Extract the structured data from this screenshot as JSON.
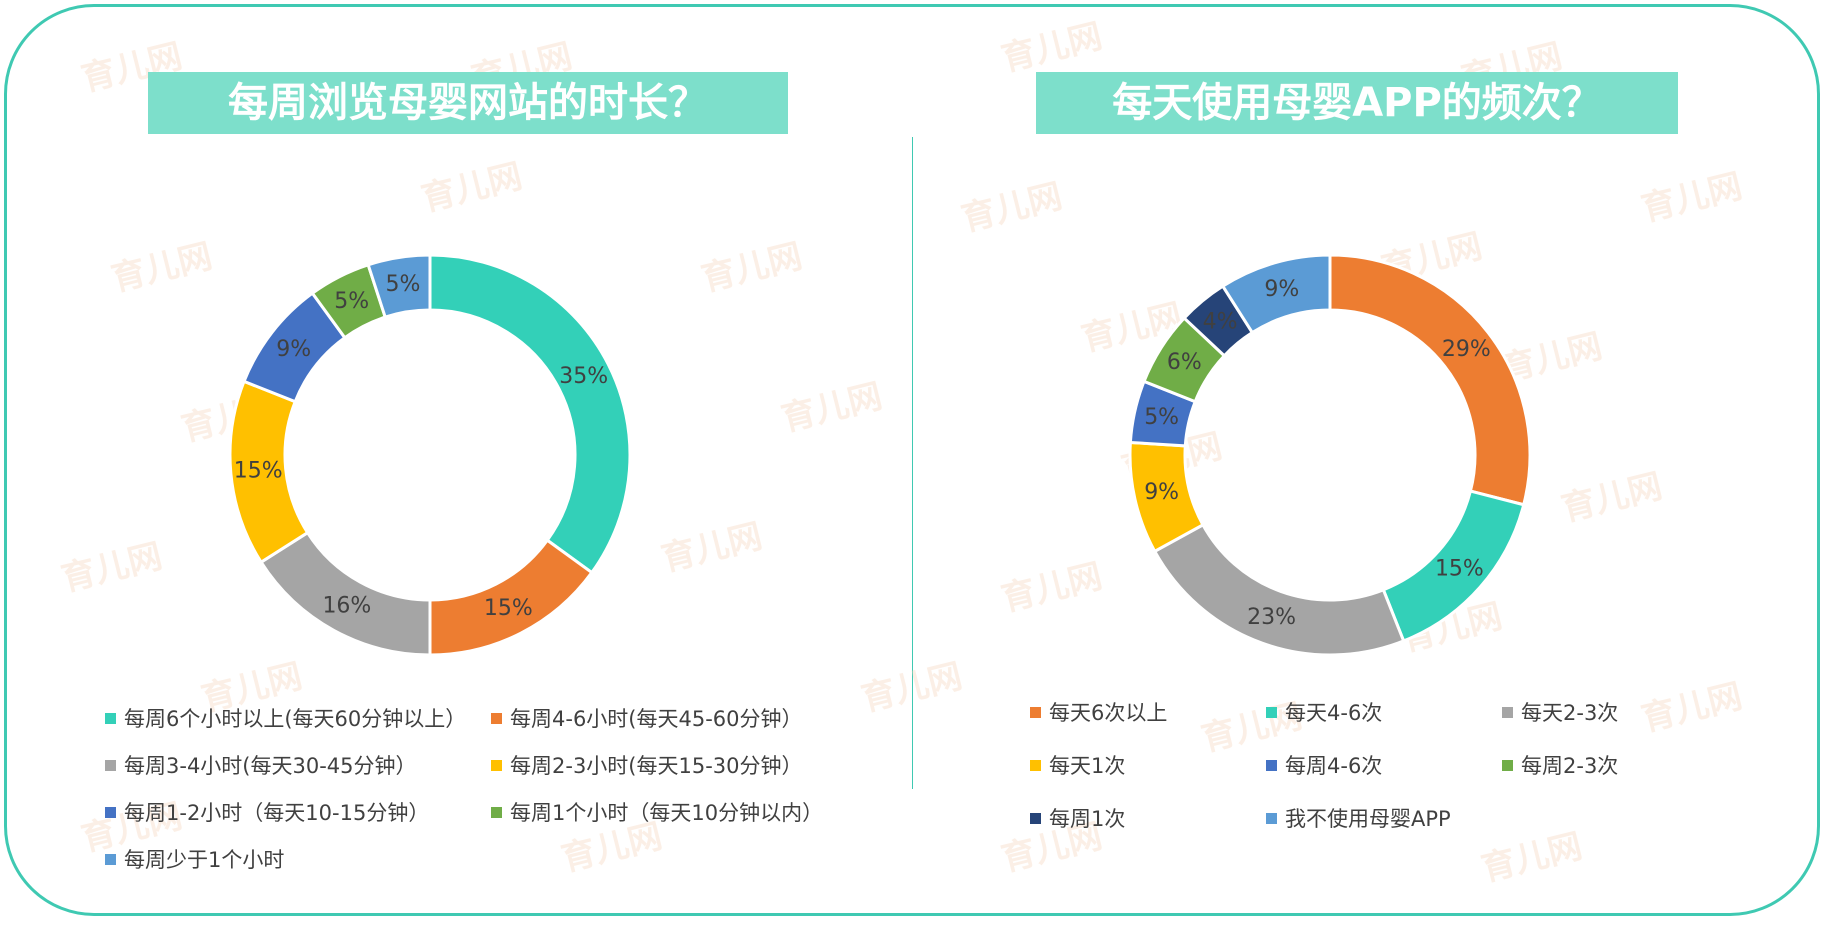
{
  "charts": [
    {
      "title": "每周浏览母婴网站的时长？",
      "chart_data": {
        "type": "pie",
        "title": "每周浏览母婴网站的时长？",
        "donut": true,
        "legend_position": "bottom",
        "series": [
          {
            "name": "每周6个小时以上(每天60分钟以上）",
            "value": 35,
            "label": "35%",
            "color": "#33d0b8"
          },
          {
            "name": "每周4-6小时(每天45-60分钟）",
            "value": 15,
            "label": "15%",
            "color": "#ed7d31"
          },
          {
            "name": "每周3-4小时(每天30-45分钟）",
            "value": 16,
            "label": "16%",
            "color": "#a5a5a5"
          },
          {
            "name": "每周2-3小时(每天15-30分钟）",
            "value": 15,
            "label": "15%",
            "color": "#ffc000"
          },
          {
            "name": "每周1-2小时（每天10-15分钟）",
            "value": 9,
            "label": "9%",
            "color": "#4472c4"
          },
          {
            "name": "每周1个小时（每天10分钟以内）",
            "value": 5,
            "label": "5%",
            "color": "#70ad47"
          },
          {
            "name": "每周少于1个小时",
            "value": 5,
            "label": "5%",
            "color": "#5b9bd5"
          }
        ]
      }
    },
    {
      "title": "每天使用母婴APP的频次？",
      "chart_data": {
        "type": "pie",
        "title": "每天使用母婴APP的频次？",
        "donut": true,
        "legend_position": "bottom",
        "series": [
          {
            "name": "每天6次以上",
            "value": 29,
            "label": "29%",
            "color": "#ed7d31"
          },
          {
            "name": "每天4-6次",
            "value": 15,
            "label": "15%",
            "color": "#33d0b8"
          },
          {
            "name": "每天2-3次",
            "value": 23,
            "label": "23%",
            "color": "#a5a5a5"
          },
          {
            "name": "每天1次",
            "value": 9,
            "label": "9%",
            "color": "#ffc000"
          },
          {
            "name": "每周4-6次",
            "value": 5,
            "label": "5%",
            "color": "#4472c4"
          },
          {
            "name": "每周2-3次",
            "value": 6,
            "label": "6%",
            "color": "#70ad47"
          },
          {
            "name": "每周1次",
            "value": 4,
            "label": "4%",
            "color": "#264478"
          },
          {
            "name": "我不使用母婴APP",
            "value": 9,
            "label": "9%",
            "color": "#5b9bd5"
          }
        ]
      }
    }
  ],
  "watermark": {
    "text": "育儿网",
    "url": "www.ci123.com"
  }
}
